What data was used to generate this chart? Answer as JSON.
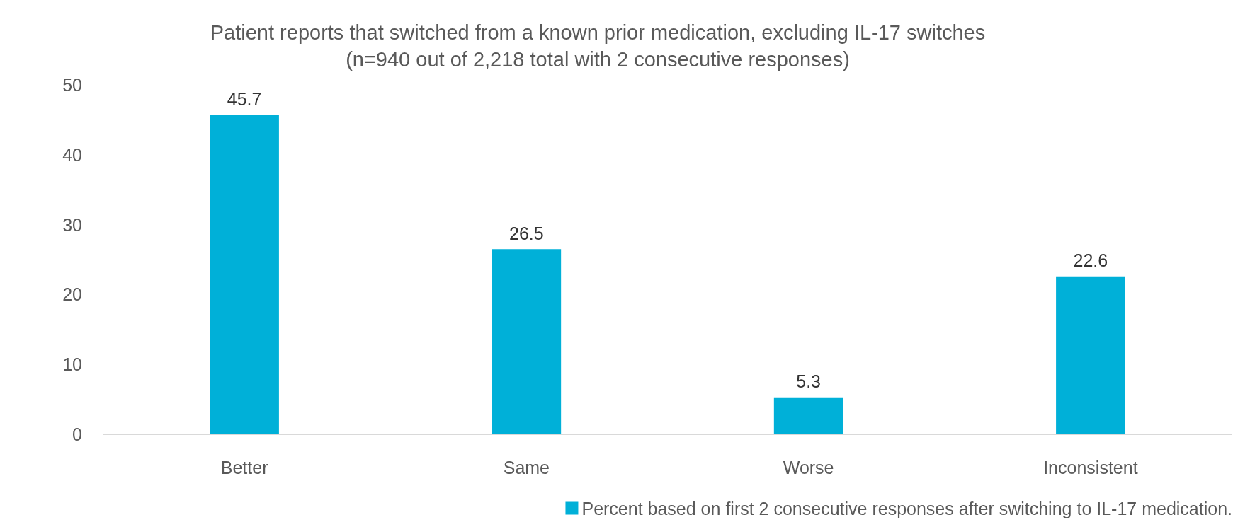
{
  "chart_data": {
    "type": "bar",
    "title": "Patient reports that switched from a known prior medication, excluding IL-17 switches",
    "subtitle": "(n=940 out of 2,218 total with 2 consecutive responses)",
    "categories": [
      "Better",
      "Same",
      "Worse",
      "Inconsistent"
    ],
    "series": [
      {
        "name": "Percent based on first 2 consecutive responses after switching to IL-17 medication.",
        "color": "#00b0d8",
        "values": [
          45.7,
          26.5,
          5.3,
          22.6
        ]
      }
    ],
    "ylim": [
      0,
      50
    ],
    "yticks": [
      0,
      10,
      20,
      30,
      40,
      50
    ],
    "grid": false,
    "legend": "bottom right",
    "data_labels": true
  }
}
